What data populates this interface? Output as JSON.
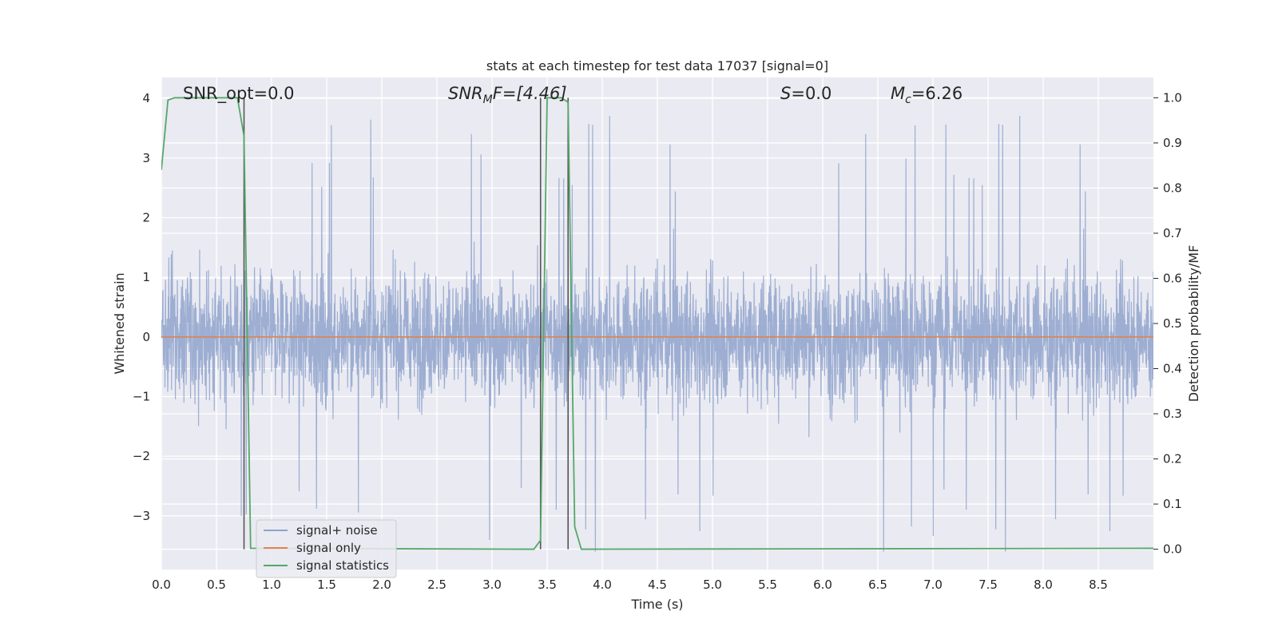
{
  "chart_data": {
    "type": "line",
    "title": "stats at each timestep for test data 17037 [signal=0]",
    "xlabel": "Time (s)",
    "ylabel": "Whitened strain",
    "ylabel_right": "Detection probability/MF",
    "xlim": [
      0.0,
      9.0
    ],
    "ylim": [
      -3.9,
      4.35
    ],
    "ylim_right": [
      -0.045,
      1.045
    ],
    "xticks": [
      0.0,
      0.5,
      1.0,
      1.5,
      2.0,
      2.5,
      3.0,
      3.5,
      4.0,
      4.5,
      5.0,
      5.5,
      6.0,
      6.5,
      7.0,
      7.5,
      8.0,
      8.5
    ],
    "xtick_labels": [
      "0.0",
      "0.5",
      "1.0",
      "1.5",
      "2.0",
      "2.5",
      "3.0",
      "3.5",
      "4.0",
      "4.5",
      "5.0",
      "5.5",
      "6.0",
      "6.5",
      "7.0",
      "7.5",
      "8.0",
      "8.5"
    ],
    "yticks": [
      -3,
      -2,
      -1,
      0,
      1,
      2,
      3,
      4
    ],
    "ytick_labels": [
      "−3",
      "−2",
      "−1",
      "0",
      "1",
      "2",
      "3",
      "4"
    ],
    "yticks_right": [
      0.0,
      0.1,
      0.2,
      0.3,
      0.4,
      0.5,
      0.6,
      0.7,
      0.8,
      0.9,
      1.0
    ],
    "ytick_labels_right": [
      "0.0",
      "0.1",
      "0.2",
      "0.3",
      "0.4",
      "0.5",
      "0.6",
      "0.7",
      "0.8",
      "0.9",
      "1.0"
    ],
    "grid": true,
    "legend_position": "lower-left",
    "series": [
      {
        "name": "signal+ noise",
        "axis": "left",
        "color": "#8fa3cc",
        "description": "dense whitened noise, roughly within ±1.3 with spikes up to about 4 and down to about -3.6",
        "amplitude_range": [
          -3.6,
          4.0
        ]
      },
      {
        "name": "signal only",
        "axis": "left",
        "color": "#dd8452",
        "x": [
          0.0,
          9.0
        ],
        "y": [
          0.0,
          0.0
        ]
      },
      {
        "name": "signal statistics",
        "axis": "right",
        "color": "#55a868",
        "x": [
          0.0,
          0.06,
          0.12,
          0.69,
          0.75,
          0.81,
          3.38,
          3.44,
          3.5,
          3.56,
          3.63,
          3.69,
          3.75,
          3.81,
          9.0
        ],
        "y": [
          0.84,
          0.995,
          1.0,
          1.0,
          0.915,
          0.002,
          0.0,
          0.02,
          1.0,
          1.0,
          1.0,
          0.99,
          0.05,
          0.0,
          0.002
        ]
      }
    ],
    "vlines": [
      0.75,
      3.44,
      3.69
    ],
    "vline_color": "#555555",
    "annotations": [
      {
        "id": "snr-opt",
        "text": "SNR_opt=0.0",
        "x": 0.2
      },
      {
        "id": "snr-mf",
        "main": "SNR",
        "sub": "M",
        "tail": "F=[4.46]",
        "x": 2.6
      },
      {
        "id": "s",
        "main": "S",
        "tail": "=0.0",
        "x": 5.6
      },
      {
        "id": "mc",
        "main": "M",
        "sub": "c",
        "tail": "=6.26",
        "x": 6.6
      }
    ],
    "colors": {
      "plot_background": "#eaeaf2",
      "grid": "#ffffff",
      "text": "#262626"
    }
  }
}
